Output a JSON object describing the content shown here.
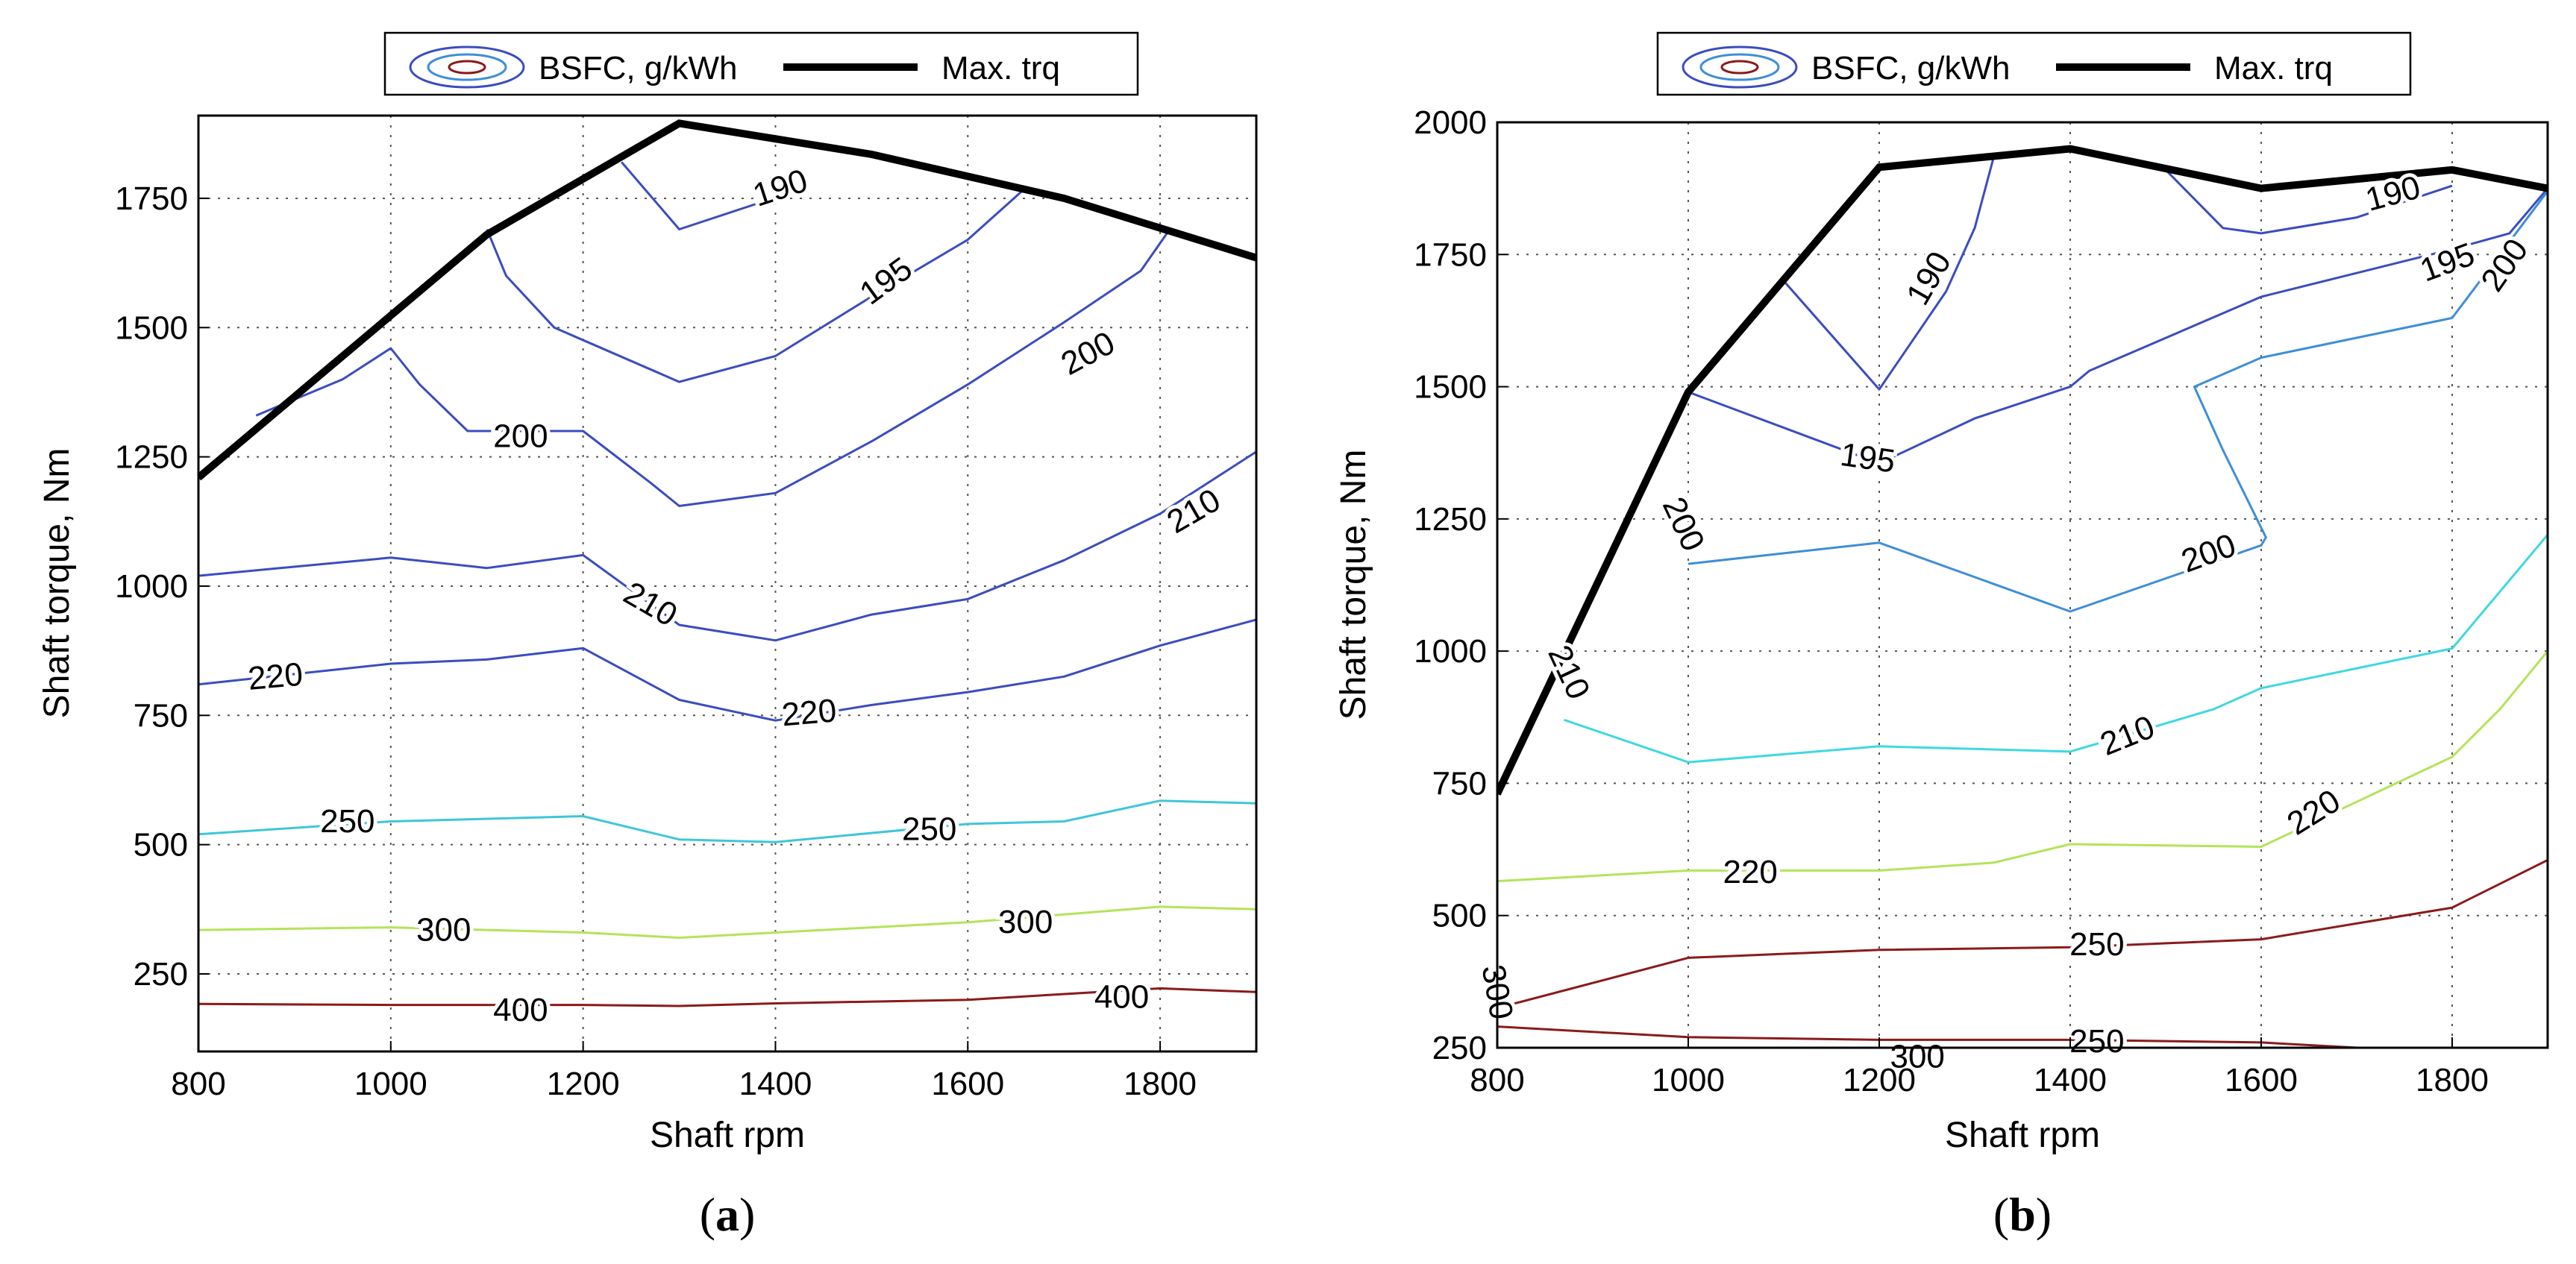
{
  "chart_data": [
    {
      "type": "contour",
      "panel_label": "a",
      "xlabel": "Shaft rpm",
      "ylabel": "Shaft torque, Nm",
      "xlim": [
        800,
        1900
      ],
      "ylim": [
        100,
        1910
      ],
      "xticks": [
        "800",
        "1000",
        "1200",
        "1400",
        "1600",
        "1800"
      ],
      "xtick_values": [
        800,
        1000,
        1200,
        1400,
        1600,
        1800
      ],
      "yticks": [
        "250",
        "500",
        "750",
        "1000",
        "1250",
        "1500",
        "1750"
      ],
      "ytick_values": [
        250,
        500,
        750,
        1000,
        1250,
        1500,
        1750
      ],
      "grid": true,
      "legend": {
        "position": "top-center",
        "entries": [
          {
            "name": "BSFC, g/kWh",
            "icon": "contour-ellipse-icon"
          },
          {
            "name": "Max. trq",
            "icon": "thick-black-line-icon"
          }
        ]
      },
      "max_torque": {
        "x": [
          800,
          1100,
          1300,
          1500,
          1700,
          1900
        ],
        "y": [
          1210,
          1680,
          1895,
          1835,
          1750,
          1635
        ]
      },
      "contours": [
        {
          "level": "190",
          "color": "#3b4cc0",
          "x": [
            1240,
            1300,
            1430
          ],
          "y": [
            1820,
            1690,
            1770
          ]
        },
        {
          "level": "195",
          "color": "#3b4cc0",
          "x": [
            1100,
            1120,
            1170,
            1300,
            1400,
            1500,
            1600,
            1660
          ],
          "y": [
            1690,
            1600,
            1500,
            1395,
            1445,
            1560,
            1670,
            1770
          ]
        },
        {
          "level": "200",
          "color": "#3b4cc0",
          "x": [
            860,
            950,
            1000,
            1030,
            1080,
            1150,
            1200,
            1270,
            1300,
            1400,
            1500,
            1600,
            1700,
            1780,
            1810
          ],
          "y": [
            1330,
            1400,
            1460,
            1390,
            1300,
            1300,
            1300,
            1200,
            1155,
            1180,
            1280,
            1390,
            1510,
            1610,
            1690
          ]
        },
        {
          "level": "210",
          "color": "#3b4cc0",
          "x": [
            800,
            1000,
            1100,
            1200,
            1300,
            1400,
            1500,
            1600,
            1700,
            1800,
            1900
          ],
          "y": [
            1020,
            1055,
            1035,
            1060,
            925,
            895,
            945,
            975,
            1050,
            1140,
            1260
          ]
        },
        {
          "level": "220",
          "color": "#3b4cc0",
          "x": [
            800,
            1000,
            1100,
            1200,
            1300,
            1400,
            1500,
            1600,
            1700,
            1800,
            1900
          ],
          "y": [
            810,
            850,
            858,
            880,
            780,
            740,
            770,
            795,
            825,
            885,
            935
          ]
        },
        {
          "level": "250",
          "color": "#3ec6d8",
          "x": [
            800,
            1000,
            1200,
            1300,
            1400,
            1600,
            1700,
            1800,
            1900
          ],
          "y": [
            520,
            545,
            555,
            510,
            505,
            540,
            545,
            585,
            580
          ]
        },
        {
          "level": "300",
          "color": "#b4e35a",
          "x": [
            800,
            1000,
            1200,
            1300,
            1400,
            1600,
            1800,
            1900
          ],
          "y": [
            335,
            340,
            330,
            320,
            330,
            350,
            380,
            375
          ]
        },
        {
          "level": "400",
          "color": "#8b1a1a",
          "x": [
            800,
            1000,
            1200,
            1300,
            1400,
            1600,
            1800,
            1900
          ],
          "y": [
            192,
            190,
            190,
            188,
            193,
            200,
            222,
            215
          ]
        }
      ],
      "contour_labels": [
        {
          "text": "190",
          "x": 1405,
          "y": 1770,
          "angle": -18
        },
        {
          "text": "195",
          "x": 1515,
          "y": 1590,
          "angle": -36
        },
        {
          "text": "200",
          "x": 1725,
          "y": 1450,
          "angle": -28
        },
        {
          "text": "200",
          "x": 1135,
          "y": 1290,
          "angle": 0
        },
        {
          "text": "210",
          "x": 1270,
          "y": 965,
          "angle": 30
        },
        {
          "text": "210",
          "x": 1835,
          "y": 1145,
          "angle": -30
        },
        {
          "text": "220",
          "x": 880,
          "y": 825,
          "angle": -5
        },
        {
          "text": "220",
          "x": 1435,
          "y": 755,
          "angle": -5
        },
        {
          "text": "250",
          "x": 955,
          "y": 545,
          "angle": 0
        },
        {
          "text": "250",
          "x": 1560,
          "y": 530,
          "angle": 0
        },
        {
          "text": "300",
          "x": 1055,
          "y": 335,
          "angle": 0
        },
        {
          "text": "300",
          "x": 1660,
          "y": 350,
          "angle": 0
        },
        {
          "text": "400",
          "x": 1135,
          "y": 180,
          "angle": 0
        },
        {
          "text": "400",
          "x": 1760,
          "y": 205,
          "angle": 0
        }
      ]
    },
    {
      "type": "contour",
      "panel_label": "b",
      "xlabel": "Shaft rpm",
      "ylabel": "Shaft torque, Nm",
      "xlim": [
        800,
        1900
      ],
      "ylim": [
        250,
        2000
      ],
      "xticks": [
        "800",
        "1000",
        "1200",
        "1400",
        "1600",
        "1800"
      ],
      "xtick_values": [
        800,
        1000,
        1200,
        1400,
        1600,
        1800
      ],
      "yticks": [
        "250",
        "500",
        "750",
        "1000",
        "1250",
        "1500",
        "1750",
        "2000"
      ],
      "ytick_values": [
        250,
        500,
        750,
        1000,
        1250,
        1500,
        1750,
        2000
      ],
      "grid": true,
      "legend": {
        "position": "top-center",
        "entries": [
          {
            "name": "BSFC, g/kWh",
            "icon": "contour-ellipse-icon"
          },
          {
            "name": "Max. trq",
            "icon": "thick-black-line-icon"
          }
        ]
      },
      "max_torque": {
        "x": [
          800,
          1000,
          1200,
          1400,
          1600,
          1800,
          1900
        ],
        "y": [
          730,
          1490,
          1915,
          1950,
          1875,
          1910,
          1875
        ]
      },
      "contours": [
        {
          "level": "190",
          "color": "#3b4cc0",
          "x": [
            1100,
            1200,
            1270,
            1300,
            1320
          ],
          "y": [
            1700,
            1495,
            1680,
            1800,
            1935
          ]
        },
        {
          "level": "190",
          "color": "#3b4cc0",
          "x": [
            1500,
            1560,
            1600,
            1700,
            1800
          ],
          "y": [
            1910,
            1800,
            1790,
            1820,
            1880
          ]
        },
        {
          "level": "195",
          "color": "#3b4cc0",
          "x": [
            1000,
            1200,
            1300,
            1400,
            1420,
            1600,
            1800,
            1860,
            1900
          ],
          "y": [
            1490,
            1355,
            1440,
            1500,
            1530,
            1670,
            1760,
            1790,
            1875
          ]
        },
        {
          "level": "200",
          "color": "#3e8ed8",
          "x": [
            1000,
            1200,
            1400,
            1600,
            1605,
            1560,
            1530,
            1600,
            1800,
            1900
          ],
          "y": [
            1165,
            1205,
            1075,
            1200,
            1215,
            1380,
            1500,
            1555,
            1630,
            1870
          ]
        },
        {
          "level": "210",
          "color": "#3fd8e0",
          "x": [
            870,
            1000,
            1200,
            1400,
            1550,
            1600,
            1800,
            1900
          ],
          "y": [
            870,
            790,
            820,
            810,
            890,
            930,
            1005,
            1220
          ]
        },
        {
          "level": "220",
          "color": "#b4e35a",
          "x": [
            800,
            1000,
            1200,
            1320,
            1400,
            1600,
            1800,
            1850,
            1900
          ],
          "y": [
            565,
            585,
            585,
            600,
            635,
            630,
            800,
            890,
            1000
          ]
        },
        {
          "level": "250",
          "color": "#8b1a1a",
          "x": [
            800,
            1000,
            1200,
            1400,
            1600,
            1800,
            1900
          ],
          "y": [
            325,
            420,
            435,
            440,
            455,
            515,
            605
          ]
        },
        {
          "level": "250",
          "color": "#8b1a1a",
          "x": [
            800,
            1000,
            1200,
            1400,
            1600,
            1750
          ],
          "y": [
            290,
            270,
            265,
            265,
            260,
            245
          ]
        }
      ],
      "contour_labels": [
        {
          "text": "190",
          "x": 1738,
          "y": 1865,
          "angle": -15
        },
        {
          "text": "190",
          "x": 1252,
          "y": 1705,
          "angle": -60
        },
        {
          "text": "195",
          "x": 1188,
          "y": 1365,
          "angle": 8
        },
        {
          "text": "195",
          "x": 1795,
          "y": 1735,
          "angle": -20
        },
        {
          "text": "200",
          "x": 1855,
          "y": 1730,
          "angle": -55
        },
        {
          "text": "200",
          "x": 995,
          "y": 1240,
          "angle": 65
        },
        {
          "text": "200",
          "x": 1545,
          "y": 1185,
          "angle": -20
        },
        {
          "text": "210",
          "x": 875,
          "y": 960,
          "angle": 65
        },
        {
          "text": "210",
          "x": 1460,
          "y": 840,
          "angle": -22
        },
        {
          "text": "220",
          "x": 1065,
          "y": 582,
          "angle": 0
        },
        {
          "text": "220",
          "x": 1655,
          "y": 695,
          "angle": -32
        },
        {
          "text": "250",
          "x": 1428,
          "y": 445,
          "angle": 0
        },
        {
          "text": "250",
          "x": 1428,
          "y": 262,
          "angle": 0
        },
        {
          "text": "300",
          "x": 1240,
          "y": 233,
          "angle": 0
        },
        {
          "text": "300",
          "x": 800,
          "y": 355,
          "angle": 80
        }
      ]
    }
  ]
}
